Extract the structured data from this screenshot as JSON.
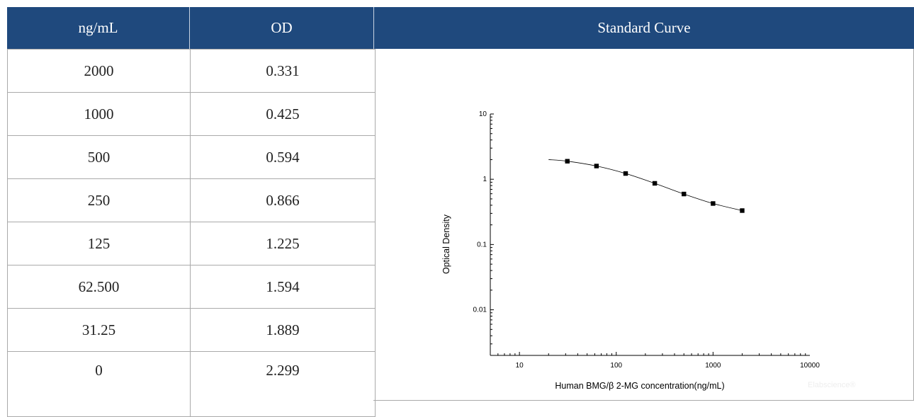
{
  "table": {
    "headers": [
      "ng/mL",
      "OD",
      "Standard Curve"
    ],
    "rows": [
      {
        "conc": "2000",
        "od": "0.331"
      },
      {
        "conc": "1000",
        "od": "0.425"
      },
      {
        "conc": "500",
        "od": "0.594"
      },
      {
        "conc": "250",
        "od": "0.866"
      },
      {
        "conc": "125",
        "od": "1.225"
      },
      {
        "conc": "62.500",
        "od": "1.594"
      },
      {
        "conc": "31.25",
        "od": "1.889"
      },
      {
        "conc": "0",
        "od": "2.299"
      }
    ]
  },
  "chart_data": {
    "type": "scatter",
    "title": "",
    "xlabel": "Human BMG/β 2-MG concentration(ng/mL)",
    "ylabel": "Optical Density",
    "x_scale": "log",
    "y_scale": "log",
    "xlim": [
      5,
      10000
    ],
    "ylim": [
      0.002,
      10
    ],
    "x_ticks": [
      10,
      100,
      1000,
      10000
    ],
    "x_tick_labels": [
      "10",
      "100",
      "1000",
      "10000"
    ],
    "y_ticks": [
      0.01,
      0.1,
      1,
      10
    ],
    "y_tick_labels": [
      "0.01",
      "0.1",
      "1",
      "10"
    ],
    "grid": false,
    "legend": "none",
    "series": [
      {
        "x": [
          2000,
          1000,
          500,
          250,
          125,
          62.5,
          31.25
        ],
        "y": [
          0.331,
          0.425,
          0.594,
          0.866,
          1.225,
          1.594,
          1.889
        ],
        "marker": "square",
        "color": "#000000"
      }
    ],
    "fit_curve": {
      "x": [
        20,
        31.25,
        62.5,
        125,
        250,
        500,
        1000,
        2000
      ],
      "y": [
        2.0,
        1.89,
        1.594,
        1.225,
        0.866,
        0.594,
        0.425,
        0.331
      ]
    }
  },
  "watermark": "Elabscience®"
}
